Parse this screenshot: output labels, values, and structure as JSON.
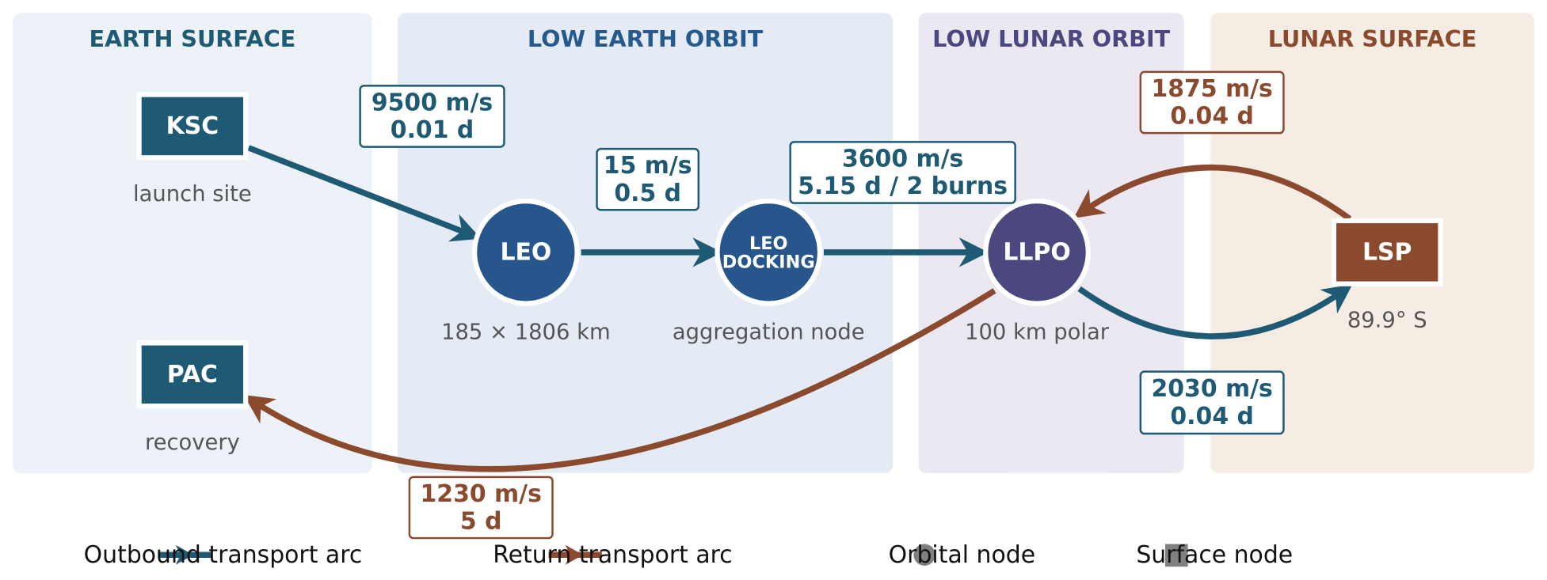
{
  "regions": [
    {
      "title": "EARTH SURFACE"
    },
    {
      "title": "LOW EARTH ORBIT"
    },
    {
      "title": "LOW LUNAR ORBIT"
    },
    {
      "title": "LUNAR SURFACE"
    }
  ],
  "nodes": [
    {
      "label": [
        "KSC"
      ],
      "caption": "launch site"
    },
    {
      "label": [
        "PAC"
      ],
      "caption": "recovery"
    },
    {
      "label": [
        "LEO"
      ],
      "caption": "185 × 1806 km"
    },
    {
      "label": [
        "LEO",
        "DOCKING"
      ],
      "caption": "aggregation node"
    },
    {
      "label": [
        "LLPO"
      ],
      "caption": "100 km polar"
    },
    {
      "label": [
        "LSP"
      ],
      "caption": "89.9° S"
    }
  ],
  "edges": [
    {
      "lines": [
        "9500 m/s",
        "0.01 d"
      ]
    },
    {
      "lines": [
        "15 m/s",
        "0.5 d"
      ]
    },
    {
      "lines": [
        "3600 m/s",
        "5.15 d / 2 burns"
      ]
    },
    {
      "lines": [
        "2030 m/s",
        "0.04 d"
      ]
    },
    {
      "lines": [
        "1875 m/s",
        "0.04 d"
      ]
    },
    {
      "lines": [
        "1230 m/s",
        "5 d"
      ]
    }
  ],
  "legend": [
    "Outbound transport arc",
    "Return transport arc",
    "Orbital node",
    "Surface node"
  ]
}
